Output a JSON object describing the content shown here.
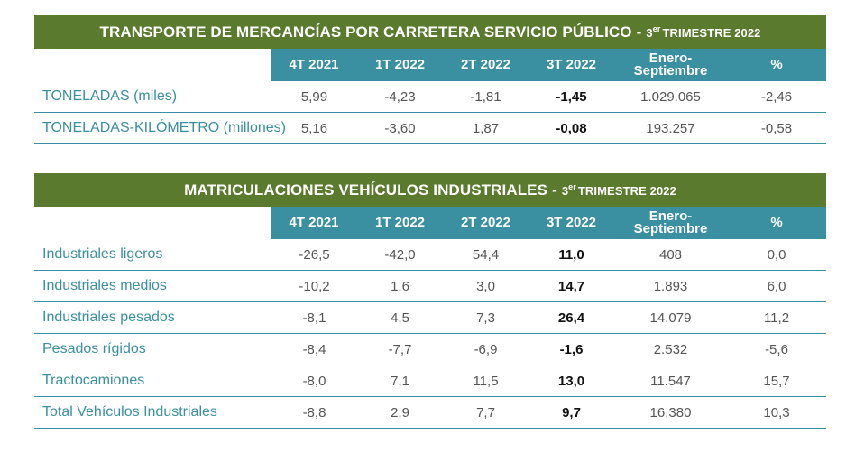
{
  "table1": {
    "title": "TRANSPORTE DE MERCANCÍAS POR CARRETERA SERVICIO PÚBLICO",
    "sep": "-",
    "period_num": "3",
    "period_sup": "er",
    "period_text": "TRIMESTRE 2022",
    "columns": [
      "4T 2021",
      "1T 2022",
      "2T 2022",
      "3T 2022",
      "Enero-\nSeptiembre",
      "%"
    ],
    "rows": [
      {
        "label": "TONELADAS (miles)",
        "values": [
          "5,99",
          "-4,23",
          "-1,81",
          "-1,45",
          "1.029.065",
          "-2,46"
        ]
      },
      {
        "label": "TONELADAS-KILÓMETRO (millones)",
        "values": [
          "5,16",
          "-3,60",
          "1,87",
          "-0,08",
          "193.257",
          "-0,58"
        ]
      }
    ]
  },
  "table2": {
    "title": "MATRICULACIONES VEHÍCULOS INDUSTRIALES",
    "sep": "-",
    "period_num": "3",
    "period_sup": "er",
    "period_text": "TRIMESTRE 2022",
    "columns": [
      "4T 2021",
      "1T 2022",
      "2T 2022",
      "3T 2022",
      "Enero-\nSeptiembre",
      "%"
    ],
    "rows": [
      {
        "label": "Industriales ligeros",
        "values": [
          "-26,5",
          "-42,0",
          "54,4",
          "11,0",
          "408",
          "0,0"
        ]
      },
      {
        "label": "Industriales medios",
        "values": [
          "-10,2",
          "1,6",
          "3,0",
          "14,7",
          "1.893",
          "6,0"
        ]
      },
      {
        "label": "Industriales pesados",
        "values": [
          "-8,1",
          "4,5",
          "7,3",
          "26,4",
          "14.079",
          "11,2"
        ]
      },
      {
        "label": "Pesados rígidos",
        "values": [
          "-8,4",
          "-7,7",
          "-6,9",
          "-1,6",
          "2.532",
          "-5,6"
        ]
      },
      {
        "label": "Tractocamiones",
        "values": [
          "-8,0",
          "7,1",
          "11,5",
          "13,0",
          "11.547",
          "15,7"
        ]
      },
      {
        "label": "Total Vehículos Industriales",
        "values": [
          "-8,8",
          "2,9",
          "7,7",
          "9,7",
          "16.380",
          "10,3"
        ]
      }
    ]
  },
  "colors": {
    "title_bg": "#5a7a2e",
    "header_bg": "#3a8fa0",
    "label": "#3a8fa0"
  }
}
